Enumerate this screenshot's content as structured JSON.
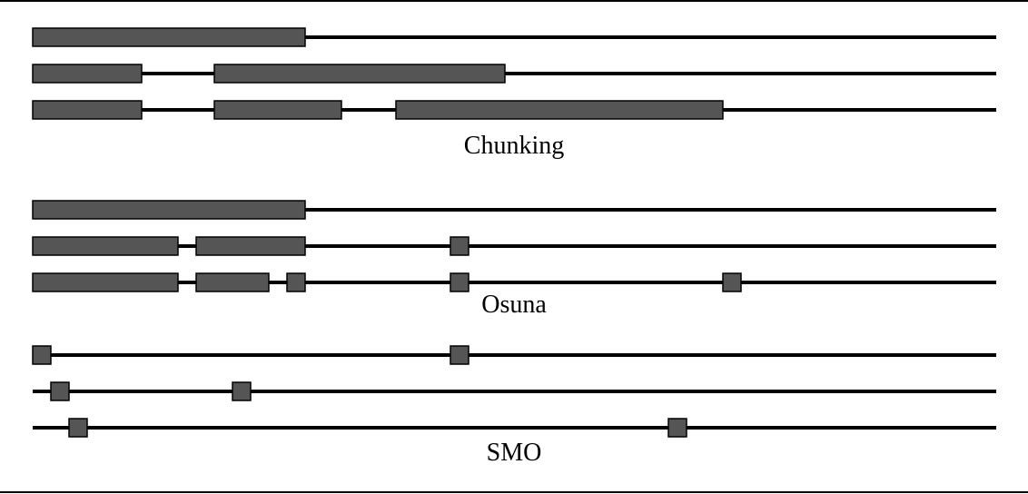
{
  "colors": {
    "block_fill": "#555555",
    "block_stroke": "#000000",
    "line": "#000000",
    "background": "#ffffff"
  },
  "groups": [
    {
      "label": "Chunking",
      "rows": [
        {
          "blocks": [
            [
              0,
              15
            ]
          ]
        },
        {
          "blocks": [
            [
              0,
              6
            ],
            [
              10,
              26
            ]
          ]
        },
        {
          "blocks": [
            [
              0,
              6
            ],
            [
              10,
              17
            ],
            [
              20,
              38
            ]
          ]
        }
      ]
    },
    {
      "label": "Osuna",
      "rows": [
        {
          "blocks": [
            [
              0,
              15
            ]
          ]
        },
        {
          "blocks": [
            [
              0,
              8
            ],
            [
              9,
              15
            ],
            [
              23,
              24
            ]
          ]
        },
        {
          "blocks": [
            [
              0,
              8
            ],
            [
              9,
              13
            ],
            [
              14,
              15
            ],
            [
              23,
              24
            ],
            [
              38,
              39
            ]
          ]
        }
      ]
    },
    {
      "label": "SMO",
      "rows": [
        {
          "blocks": [
            [
              0,
              1
            ],
            [
              23,
              24
            ]
          ]
        },
        {
          "blocks": [
            [
              1,
              2
            ],
            [
              11,
              12
            ]
          ]
        },
        {
          "blocks": [
            [
              2,
              3
            ],
            [
              35,
              36
            ]
          ]
        }
      ]
    }
  ]
}
